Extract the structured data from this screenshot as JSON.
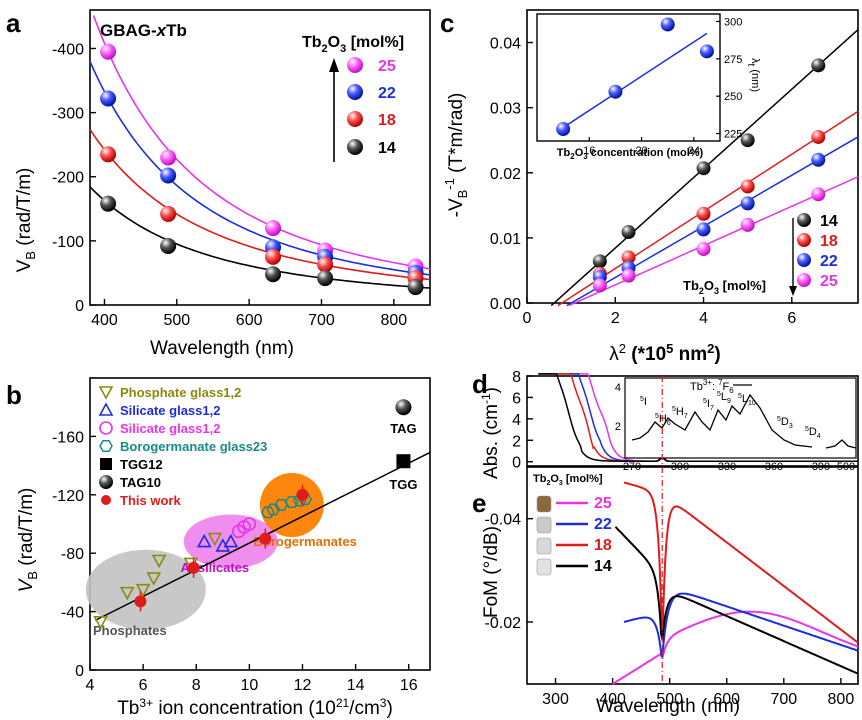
{
  "colors": {
    "c14": "#000000",
    "c18": "#e01b1b",
    "c22": "#1a2ee0",
    "c25": "#e834e8"
  },
  "panels": {
    "a": {
      "letter": "a",
      "title": "GBAG-xTb",
      "legend_title": "Tb2O3 [mol%]",
      "xlabel": "Wavelength (nm)",
      "ylabel": "VB (rad/T/m)"
    },
    "b": {
      "letter": "b",
      "xlabel": "Tb3+ ion concentration (1021/cm3)",
      "ylabel": "VB (rad/T/m)"
    },
    "c": {
      "letter": "c",
      "xlabel": "λ2 (*105 nm2)",
      "ylabel": "-VB-1 (T*m/rad)",
      "legend_title": "Tb2O3 [mol%]"
    },
    "c_inset": {
      "xlabel": "Tb2O3 concentration (mol%)",
      "ylabel": "λt (nm)"
    },
    "d": {
      "letter": "d",
      "ylabel": "Abs. (cm-1)"
    },
    "d_inset": {
      "title": "Tb3+: 7F6"
    },
    "e": {
      "letter": "e",
      "legend_title": "Tb2O3 [mol%]",
      "xlabel": "Wavelength (nm)",
      "ylabel": "FoM (°/dB)"
    }
  },
  "chart_data": [
    {
      "panel": "a",
      "type": "scatter",
      "xlim": [
        380,
        850
      ],
      "ylim": [
        0,
        -460
      ],
      "xticks": [
        "400",
        "500",
        "600",
        "700",
        "800"
      ],
      "yticks": [
        "0",
        "-100",
        "-200",
        "-300",
        "-400"
      ],
      "x": [
        405,
        488,
        633,
        705,
        830
      ],
      "series": [
        {
          "name": "25",
          "color": "#e834e8",
          "values": [
            -395,
            -230,
            -120,
            -85,
            -60
          ]
        },
        {
          "name": "22",
          "color": "#1a2ee0",
          "values": [
            -322,
            -202,
            -90,
            -75,
            -50
          ]
        },
        {
          "name": "18",
          "color": "#e01b1b",
          "values": [
            -235,
            -142,
            -75,
            -63,
            -42
          ]
        },
        {
          "name": "14",
          "color": "#000000",
          "values": [
            -158,
            -92,
            -48,
            -42,
            -28
          ]
        }
      ]
    },
    {
      "panel": "b",
      "type": "scatter",
      "xlim": [
        4,
        16.8
      ],
      "ylim": [
        0,
        -200
      ],
      "xticks": [
        "4",
        "6",
        "8",
        "10",
        "12",
        "14",
        "16"
      ],
      "yticks": [
        "0",
        "-40",
        "-80",
        "-120",
        "-160"
      ],
      "legend": [
        "Phosphate glass1,2",
        "Silicate glass1,2",
        "Silicate glass1,2",
        "Borogermanate glass23",
        "TGG12",
        "TAG10",
        "This work"
      ],
      "regions": [
        "Phosphates",
        "Al-silicates",
        "Borogermanates"
      ],
      "point_labels": [
        "TAG",
        "TGG"
      ],
      "phosphate": [
        [
          4.4,
          -33
        ],
        [
          5.4,
          -53
        ],
        [
          6.0,
          -55
        ],
        [
          6.4,
          -63
        ],
        [
          6.6,
          -75
        ],
        [
          7.8,
          -73
        ],
        [
          8.7,
          -90
        ]
      ],
      "silicate_blue": [
        [
          8.3,
          -88
        ],
        [
          9.0,
          -85
        ],
        [
          9.3,
          -88
        ]
      ],
      "silicate_pink": [
        [
          9.6,
          -95
        ],
        [
          9.8,
          -98
        ],
        [
          10.0,
          -100
        ]
      ],
      "borogermanate": [
        [
          10.7,
          -108
        ],
        [
          10.9,
          -110
        ],
        [
          11.2,
          -113
        ],
        [
          11.6,
          -115
        ],
        [
          11.9,
          -116
        ],
        [
          12.1,
          -117
        ]
      ],
      "tgg": [
        [
          15.8,
          -143
        ]
      ],
      "tag": [
        [
          15.8,
          -180
        ]
      ],
      "this_work": [
        [
          5.9,
          -47
        ],
        [
          7.9,
          -70
        ],
        [
          10.6,
          -90
        ],
        [
          12.0,
          -120
        ]
      ],
      "fit": [
        [
          4.2,
          -34
        ],
        [
          16.8,
          -149
        ]
      ]
    },
    {
      "panel": "c",
      "type": "scatter",
      "xlim": [
        0,
        7.5
      ],
      "ylim": [
        0,
        0.045
      ],
      "xticks": [
        "0",
        "2",
        "4",
        "6"
      ],
      "yticks": [
        "0.00",
        "0.01",
        "0.02",
        "0.03",
        "0.04"
      ],
      "x": [
        1.65,
        2.3,
        4.0,
        5.0,
        6.6
      ],
      "series": [
        {
          "name": "14",
          "color": "#000000",
          "values": [
            0.0064,
            0.0109,
            0.0207,
            0.025,
            0.0365
          ]
        },
        {
          "name": "18",
          "color": "#e01b1b",
          "values": [
            0.0045,
            0.007,
            0.0137,
            0.0179,
            0.0255
          ]
        },
        {
          "name": "22",
          "color": "#1a2ee0",
          "values": [
            0.004,
            0.0054,
            0.0113,
            0.0153,
            0.022
          ]
        },
        {
          "name": "25",
          "color": "#e834e8",
          "values": [
            0.0027,
            0.0042,
            0.0083,
            0.012,
            0.0167
          ]
        }
      ],
      "x_intercepts": [
        0.6,
        0.75,
        0.95,
        1.0
      ]
    },
    {
      "panel": "c_inset",
      "type": "scatter",
      "xlim": [
        12,
        26
      ],
      "ylim": [
        220,
        305
      ],
      "xticks": [
        "16",
        "20",
        "24"
      ],
      "yticks": [
        "225",
        "250",
        "275",
        "300"
      ],
      "x": [
        14,
        18,
        22,
        25
      ],
      "values": [
        228,
        253,
        298,
        280
      ],
      "fit": [
        [
          14,
          229
        ],
        [
          25,
          292
        ]
      ]
    },
    {
      "panel": "d",
      "type": "line",
      "xlim": [
        250,
        830
      ],
      "ylim": [
        -0.4,
        8
      ],
      "yticks": [
        "0",
        "2",
        "4",
        "6",
        "8"
      ],
      "series": [
        {
          "name": "25",
          "color": "#e834e8"
        },
        {
          "name": "22",
          "color": "#1a2ee0"
        },
        {
          "name": "18",
          "color": "#e01b1b"
        },
        {
          "name": "14",
          "color": "#000000"
        }
      ]
    },
    {
      "panel": "d_inset",
      "type": "line",
      "xticks": [
        "270",
        "300",
        "330",
        "360",
        "390",
        "500"
      ],
      "yticks": [
        "2",
        "4"
      ],
      "transition_labels": [
        "5I",
        "5H6",
        "5H7",
        "5I7",
        "5L9",
        "5L10",
        "5D3",
        "5D4"
      ]
    },
    {
      "panel": "e",
      "type": "line",
      "xlim": [
        250,
        830
      ],
      "ylim": [
        -0.008,
        -0.05
      ],
      "xticks": [
        "300",
        "400",
        "500",
        "600",
        "700",
        "800"
      ],
      "yticks": [
        "-0.02",
        "-0.04"
      ],
      "series": [
        {
          "name": "25",
          "color": "#e834e8"
        },
        {
          "name": "22",
          "color": "#1a2ee0"
        },
        {
          "name": "18",
          "color": "#e01b1b"
        },
        {
          "name": "14",
          "color": "#000000"
        }
      ]
    }
  ]
}
